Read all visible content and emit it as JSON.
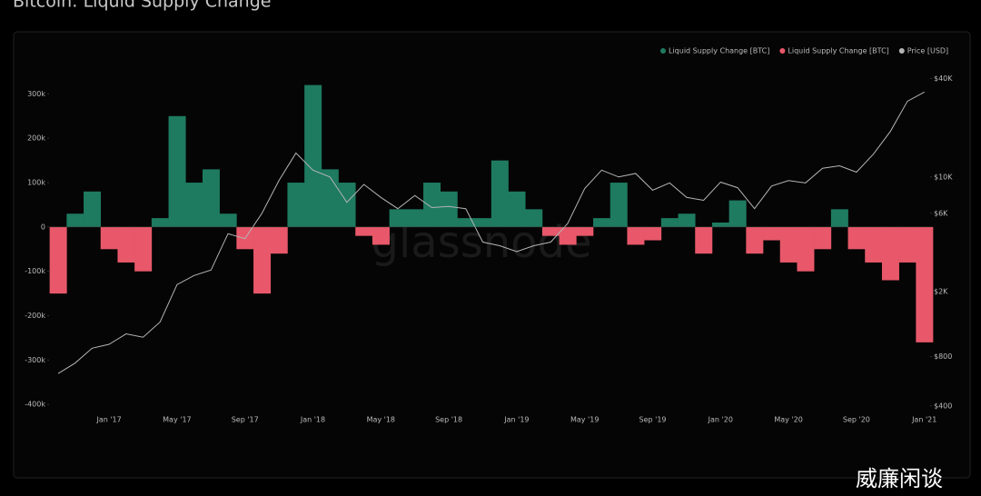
{
  "chart_data": {
    "type": "bar",
    "title": "Bitcoin: Liquid Supply Change",
    "watermark": "glassnode",
    "credit": "威廉闲谈",
    "categories": [
      null,
      null,
      null,
      "Jan '17",
      null,
      null,
      null,
      "May '17",
      null,
      null,
      null,
      "Sep '17",
      null,
      null,
      null,
      "Jan '18",
      null,
      null,
      null,
      "May '18",
      null,
      null,
      null,
      "Sep '18",
      null,
      null,
      null,
      "Jan '19",
      null,
      null,
      null,
      "May '19",
      null,
      null,
      null,
      "Sep '19",
      null,
      null,
      null,
      "Jan '20",
      null,
      null,
      null,
      "May '20",
      null,
      null,
      null,
      "Sep '20",
      null,
      null,
      null,
      "Jan '21"
    ],
    "series": [
      {
        "name": "Liquid Supply Change [BTC]",
        "color": "#1e7b60",
        "values": [
          null,
          30000,
          80000,
          null,
          null,
          null,
          20000,
          250000,
          100000,
          130000,
          30000,
          null,
          null,
          null,
          100000,
          320000,
          130000,
          100000,
          null,
          null,
          40000,
          40000,
          100000,
          80000,
          20000,
          20000,
          150000,
          80000,
          40000,
          null,
          null,
          null,
          20000,
          100000,
          null,
          null,
          20000,
          30000,
          null,
          10000,
          60000,
          null,
          null,
          null,
          null,
          null,
          40000,
          null,
          null,
          null,
          null,
          null
        ]
      },
      {
        "name": "Liquid Supply Change [BTC]",
        "color": "#e8586a",
        "values": [
          -150000,
          null,
          null,
          -50000,
          -80000,
          -100000,
          null,
          null,
          null,
          null,
          null,
          -50000,
          -150000,
          -60000,
          null,
          null,
          null,
          null,
          -20000,
          -40000,
          null,
          null,
          null,
          null,
          null,
          null,
          null,
          null,
          null,
          -20000,
          -40000,
          -20000,
          null,
          null,
          -40000,
          -30000,
          null,
          null,
          -60000,
          null,
          null,
          -60000,
          -30000,
          -80000,
          -100000,
          -50000,
          null,
          -50000,
          -80000,
          -120000,
          -80000,
          -260000
        ]
      },
      {
        "name": "Price [USD]",
        "color": "#b5b5b5",
        "axis": "y2",
        "values": [
          630,
          730,
          900,
          950,
          1100,
          1050,
          1300,
          2200,
          2500,
          2700,
          4500,
          4200,
          6000,
          9500,
          14000,
          11000,
          10000,
          7000,
          9000,
          7500,
          6400,
          7700,
          6500,
          6600,
          6400,
          4000,
          3800,
          3500,
          3800,
          4000,
          5200,
          8500,
          11000,
          10000,
          10500,
          8300,
          9200,
          7500,
          7200,
          9300,
          8600,
          6400,
          8800,
          9500,
          9200,
          11300,
          11700,
          10700,
          13800,
          19000,
          29000,
          33000
        ]
      }
    ],
    "ylim": [
      -420000,
      440000
    ],
    "yticks": [
      {
        "value": -400000,
        "label": "-400k"
      },
      {
        "value": -300000,
        "label": "-300k"
      },
      {
        "value": -200000,
        "label": "-200k"
      },
      {
        "value": -100000,
        "label": "-100k"
      },
      0,
      {
        "value": 100000,
        "label": "100k"
      },
      {
        "value": 200000,
        "label": "200k"
      },
      {
        "value": 300000,
        "label": "300k"
      }
    ],
    "y2lim": [
      360,
      77000
    ],
    "y2log": true,
    "y2ticks": [
      {
        "value": 400,
        "label": "$400"
      },
      {
        "value": 800,
        "label": "$800"
      },
      {
        "value": 2000,
        "label": "$2K"
      },
      {
        "value": 6000,
        "label": "$6K"
      },
      {
        "value": 10000,
        "label": "$10K"
      },
      {
        "value": 40000,
        "label": "$40K"
      }
    ],
    "legend": "top-right"
  }
}
